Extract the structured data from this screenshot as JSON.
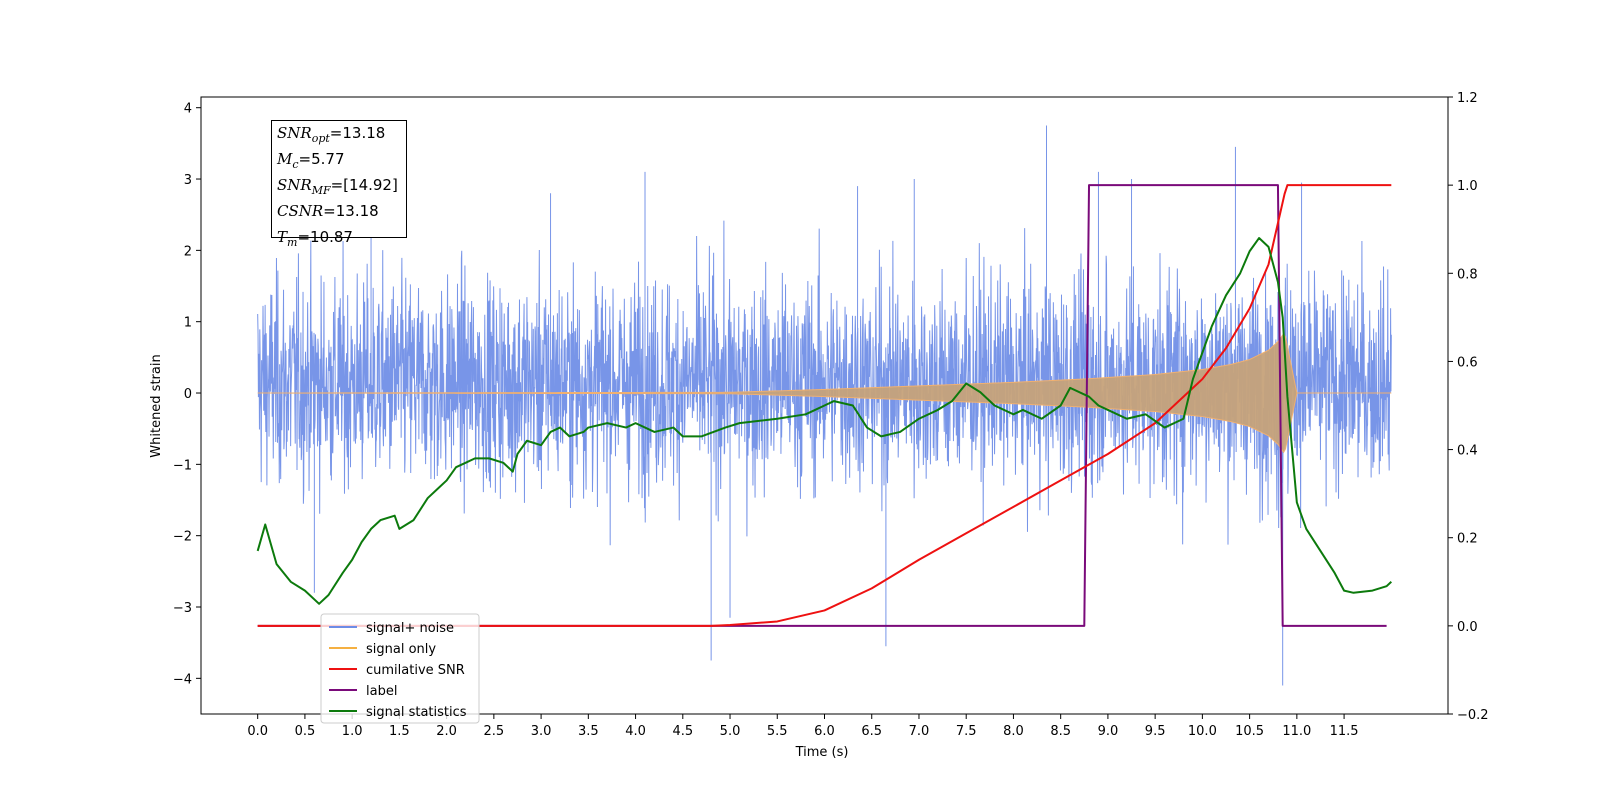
{
  "chart_data": {
    "type": "line",
    "xlabel": "Time (s)",
    "ylabel": "Whitened strain",
    "xlim": [
      -0.6,
      12.6
    ],
    "ylim": [
      -4.5,
      4.15
    ],
    "y2lim": [
      -0.2,
      1.2
    ],
    "x_ticks": [
      "0.0",
      "0.5",
      "1.0",
      "1.5",
      "2.0",
      "2.5",
      "3.0",
      "3.5",
      "4.0",
      "4.5",
      "5.0",
      "5.5",
      "6.0",
      "6.5",
      "7.0",
      "7.5",
      "8.0",
      "8.5",
      "9.0",
      "9.5",
      "10.0",
      "10.5",
      "11.0",
      "11.5"
    ],
    "y_ticks": [
      "4",
      "3",
      "2",
      "1",
      "0",
      "−1",
      "−2",
      "−3",
      "−4"
    ],
    "y2_ticks": [
      "1.2",
      "1.0",
      "0.8",
      "0.6",
      "0.4",
      "0.2",
      "0.0",
      "−0.2"
    ],
    "grid": false,
    "legend_position": "lower-left",
    "stats": [
      {
        "symbol": "SNR",
        "sub": "opt",
        "value": "=13.18"
      },
      {
        "symbol": "M",
        "sub": "c",
        "value": "=5.77"
      },
      {
        "symbol": "SNR",
        "sub": "MF",
        "value": "=[14.92]"
      },
      {
        "symbol": "CSNR",
        "sub": "",
        "value": "=13.18"
      },
      {
        "symbol": "T",
        "sub": "m",
        "value": "=10.87"
      }
    ],
    "series": [
      {
        "name": "signal+ noise",
        "color": "#6d8ce6",
        "axis": "left",
        "envelope": {
          "x": [
            0.0,
            12.0
          ],
          "typical_range": [
            -1.7,
            2.0
          ]
        },
        "spikes": [
          [
            0.6,
            -2.8
          ],
          [
            1.2,
            2.8
          ],
          [
            3.1,
            2.8
          ],
          [
            4.1,
            3.1
          ],
          [
            4.8,
            -3.75
          ],
          [
            5.0,
            -3.15
          ],
          [
            6.35,
            2.9
          ],
          [
            6.65,
            -3.55
          ],
          [
            6.95,
            3.0
          ],
          [
            8.35,
            3.75
          ],
          [
            8.9,
            3.1
          ],
          [
            9.25,
            3.0
          ],
          [
            10.35,
            3.45
          ],
          [
            10.85,
            -4.1
          ],
          [
            11.05,
            2.95
          ]
        ]
      },
      {
        "name": "signal only",
        "color": "#c6a27a",
        "axis": "left",
        "x": [
          0.0,
          5.0,
          6.0,
          7.0,
          8.0,
          8.8,
          9.5,
          10.0,
          10.3,
          10.5,
          10.7,
          10.8,
          10.87,
          11.0,
          12.0
        ],
        "amplitude": [
          0.0,
          0.01,
          0.05,
          0.1,
          0.15,
          0.2,
          0.26,
          0.33,
          0.4,
          0.47,
          0.6,
          0.72,
          0.85,
          0.0,
          0.0
        ]
      },
      {
        "name": "cumilative SNR",
        "color": "#ee1111",
        "axis": "right",
        "x": [
          0.0,
          4.8,
          5.0,
          5.5,
          6.0,
          6.5,
          7.0,
          7.5,
          8.0,
          8.5,
          9.0,
          9.5,
          10.0,
          10.25,
          10.5,
          10.7,
          10.87,
          10.9,
          12.0
        ],
        "y": [
          0.0,
          0.0,
          0.002,
          0.01,
          0.035,
          0.085,
          0.15,
          0.21,
          0.27,
          0.33,
          0.39,
          0.46,
          0.56,
          0.63,
          0.72,
          0.82,
          0.98,
          1.0,
          1.0
        ]
      },
      {
        "name": "label",
        "color": "#7a0a7a",
        "axis": "right",
        "x": [
          0.0,
          8.75,
          8.8,
          10.8,
          10.85,
          11.95
        ],
        "y": [
          0.0,
          0.0,
          1.0,
          1.0,
          0.0,
          0.0
        ]
      },
      {
        "name": "signal statistics",
        "color": "#0c7a0c",
        "axis": "right",
        "x": [
          0.0,
          0.08,
          0.2,
          0.35,
          0.5,
          0.65,
          0.75,
          0.9,
          1.0,
          1.1,
          1.2,
          1.3,
          1.45,
          1.5,
          1.65,
          1.8,
          1.9,
          2.0,
          2.1,
          2.2,
          2.3,
          2.45,
          2.6,
          2.7,
          2.75,
          2.85,
          3.0,
          3.1,
          3.2,
          3.3,
          3.45,
          3.5,
          3.7,
          3.9,
          4.0,
          4.2,
          4.4,
          4.5,
          4.7,
          4.95,
          5.1,
          5.5,
          5.8,
          5.9,
          6.0,
          6.1,
          6.3,
          6.45,
          6.6,
          6.8,
          7.0,
          7.2,
          7.35,
          7.5,
          7.65,
          7.8,
          8.0,
          8.1,
          8.3,
          8.5,
          8.6,
          8.8,
          8.9,
          9.0,
          9.2,
          9.4,
          9.6,
          9.8,
          9.9,
          10.0,
          10.1,
          10.25,
          10.4,
          10.5,
          10.6,
          10.7,
          10.8,
          10.85,
          10.9,
          11.0,
          11.1,
          11.25,
          11.4,
          11.5,
          11.6,
          11.8,
          11.95,
          12.0
        ],
        "y": [
          0.17,
          0.23,
          0.14,
          0.1,
          0.08,
          0.05,
          0.07,
          0.12,
          0.15,
          0.19,
          0.22,
          0.24,
          0.25,
          0.22,
          0.24,
          0.29,
          0.31,
          0.33,
          0.36,
          0.37,
          0.38,
          0.38,
          0.37,
          0.35,
          0.39,
          0.42,
          0.41,
          0.44,
          0.45,
          0.43,
          0.44,
          0.45,
          0.46,
          0.45,
          0.46,
          0.44,
          0.45,
          0.43,
          0.43,
          0.45,
          0.46,
          0.47,
          0.48,
          0.49,
          0.5,
          0.51,
          0.5,
          0.45,
          0.43,
          0.44,
          0.47,
          0.49,
          0.51,
          0.55,
          0.53,
          0.5,
          0.48,
          0.49,
          0.47,
          0.5,
          0.54,
          0.52,
          0.5,
          0.49,
          0.47,
          0.48,
          0.45,
          0.47,
          0.56,
          0.62,
          0.68,
          0.75,
          0.8,
          0.85,
          0.88,
          0.86,
          0.78,
          0.7,
          0.52,
          0.28,
          0.22,
          0.17,
          0.12,
          0.08,
          0.075,
          0.08,
          0.09,
          0.1
        ]
      }
    ]
  }
}
